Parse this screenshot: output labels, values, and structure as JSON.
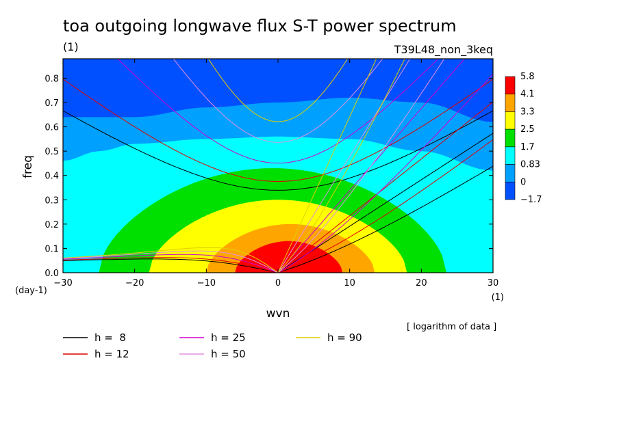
{
  "chart_data": {
    "type": "heatmap",
    "title": "toa outgoing longwave flux S-T power spectrum",
    "subtitle_left": "(1)",
    "subtitle_right": "T39L48_non_3keq",
    "xlabel": "wvn",
    "ylabel": "freq",
    "x_unit": "(1)",
    "y_unit": "(day-1)",
    "xlim": [
      -30,
      30
    ],
    "ylim": [
      0,
      0.88
    ],
    "x_ticks": [
      -30,
      -20,
      -10,
      0,
      10,
      20,
      30
    ],
    "x_tick_labels": [
      "−30",
      "−20",
      "−10",
      "0",
      "10",
      "20",
      "30"
    ],
    "y_ticks": [
      0,
      0.1,
      0.2,
      0.3,
      0.4,
      0.5,
      0.6,
      0.7,
      0.8
    ],
    "y_tick_labels": [
      "0.0",
      "0.1",
      "0.2",
      "0.3",
      "0.4",
      "0.5",
      "0.6",
      "0.7",
      "0.8"
    ],
    "note": "[ logarithm of data ]",
    "colorbar": {
      "levels": [
        "5.8",
        "4.1",
        "3.3",
        "2.5",
        "1.7",
        "0.83",
        "0",
        "−1.7"
      ],
      "colors": [
        "#ff0000",
        "#ffa500",
        "#ffff00",
        "#00e000",
        "#00ffff",
        "#00a0ff",
        "#0050ff"
      ]
    },
    "field_model": {
      "description_levels": [
        -1.7,
        0,
        0.83,
        1.7,
        2.5,
        3.3,
        4.1,
        5.8
      ],
      "bands_from_top": [
        {
          "level": 0,
          "x": [
            -30,
            -20,
            -10,
            0,
            10,
            20,
            30
          ],
          "y": [
            0.64,
            0.64,
            0.68,
            0.7,
            0.72,
            0.7,
            0.62
          ]
        },
        {
          "level": 0.83,
          "x": [
            -30,
            -25,
            -20,
            -10,
            0,
            10,
            20,
            30
          ],
          "y": [
            0.46,
            0.5,
            0.53,
            0.55,
            0.56,
            0.55,
            0.5,
            0.42
          ]
        },
        {
          "level": 1.7,
          "x_range": [
            -25,
            23.5
          ],
          "y_max": 0.43
        },
        {
          "level": 2.5,
          "x_range": [
            -18,
            18
          ],
          "y_max": 0.3
        },
        {
          "level": 3.3,
          "x_range": [
            -10,
            13.5
          ],
          "y_max": 0.2
        },
        {
          "level": 4.1,
          "x_range": [
            -6,
            9
          ],
          "y_max": 0.13
        }
      ]
    },
    "dispersion_curves": [
      {
        "name": "h =  8",
        "h": 8,
        "color": "#000000"
      },
      {
        "name": "h = 12",
        "h": 12,
        "color": "#e00000"
      },
      {
        "name": "h = 25",
        "h": 25,
        "color": "#d000d0"
      },
      {
        "name": "h = 50",
        "h": 50,
        "color": "#e090e0"
      },
      {
        "name": "h = 90",
        "h": 90,
        "color": "#e0d000"
      }
    ]
  }
}
